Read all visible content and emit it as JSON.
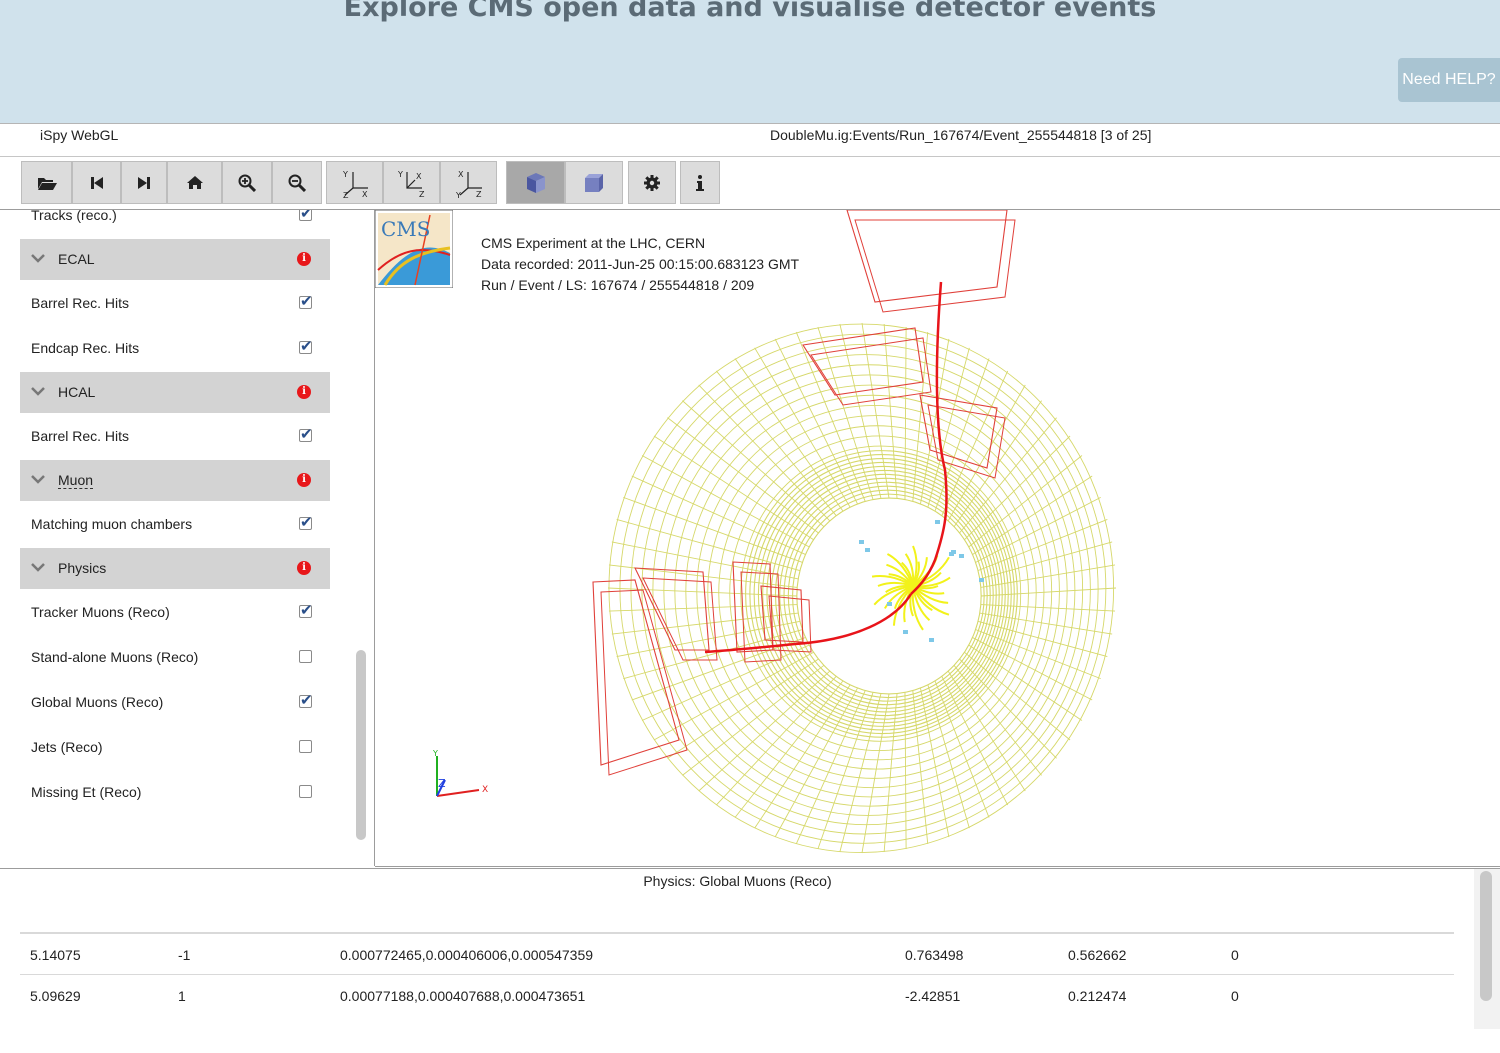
{
  "header": {
    "title": "Explore CMS open data and visualise detector events",
    "help_label": "Need HELP?"
  },
  "app": {
    "name": "iSpy WebGL",
    "event_path": "DoubleMu.ig:Events/Run_167674/Event_255544818 [3 of 25]"
  },
  "toolbar": {
    "buttons": [
      "open-file",
      "previous-event",
      "next-event",
      "home",
      "zoom-in",
      "zoom-out",
      "view-xy",
      "view-xz",
      "view-yz",
      "perspective",
      "orthographic",
      "settings",
      "about"
    ]
  },
  "sidebar": {
    "partial_item": "Tracks (reco.)",
    "ecal": {
      "label": "ECAL",
      "items": [
        "Barrel Rec. Hits",
        "Endcap Rec. Hits"
      ]
    },
    "hcal": {
      "label": "HCAL",
      "items": [
        "Barrel Rec. Hits"
      ]
    },
    "muon": {
      "label": "Muon",
      "items": [
        "Matching muon chambers"
      ]
    },
    "physics": {
      "label": "Physics",
      "items": [
        "Tracker Muons (Reco)",
        "Stand-alone Muons (Reco)",
        "Global Muons (Reco)",
        "Jets (Reco)",
        "Missing Et (Reco)"
      ],
      "checked": [
        true,
        false,
        true,
        false,
        false
      ]
    }
  },
  "event_info": {
    "line1": "CMS Experiment at the LHC, CERN",
    "line2": "Data recorded: 2011-Jun-25 00:15:00.683123 GMT",
    "line3": "Run / Event / LS: 167674 / 255544818 / 209",
    "logo_text": "CMS"
  },
  "axes": {
    "y": "Y",
    "z": "Z",
    "x": "X"
  },
  "table": {
    "title": "Physics: Global Muons (Reco)",
    "rows": [
      [
        "5.14075",
        "-1",
        "0.000772465,0.000406006,0.000547359",
        "0.763498",
        "0.562662",
        "0"
      ],
      [
        "5.09629",
        "1",
        "0.00077188,0.000407688,0.000473651",
        "-2.42851",
        "0.212474",
        "0"
      ]
    ]
  },
  "colors": {
    "banner": "#d0e2ec",
    "calo": "#d6d86a",
    "muon_chamber": "#e0403a",
    "track": "#e8141a",
    "jets": "#f2f21a",
    "hits": "#7ec8e8"
  }
}
